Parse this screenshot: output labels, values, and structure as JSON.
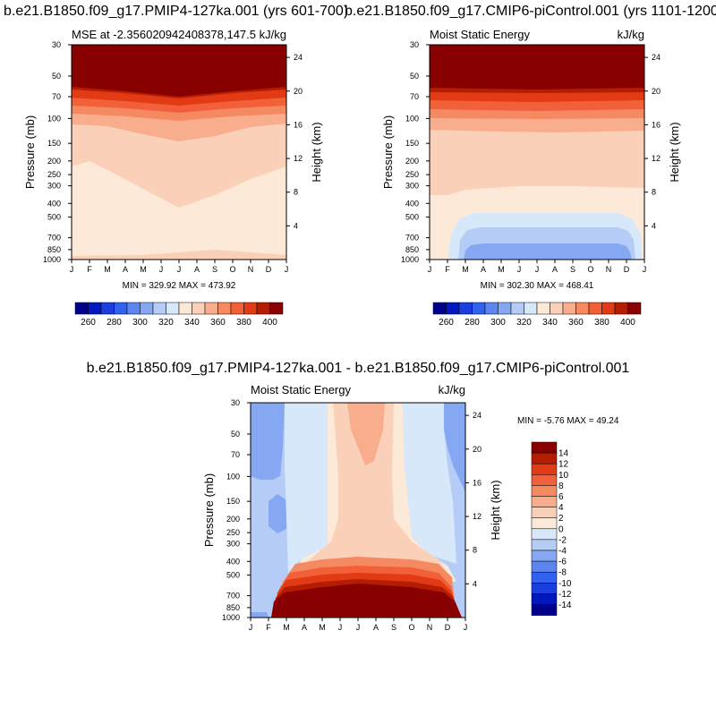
{
  "chart_data": [
    {
      "type": "heatmap",
      "title": "b.e21.B1850.f09_g17.PMIP4-127ka.001 (yrs 601-700)",
      "left_string": "MSE at -2.356020942408378,147.5",
      "right_string": "kJ/kg",
      "ylabel": "Pressure (mb)",
      "ylabel_right": "Height (km)",
      "x_ticks": [
        "J",
        "F",
        "M",
        "A",
        "M",
        "J",
        "J",
        "A",
        "S",
        "O",
        "N",
        "D",
        "J"
      ],
      "y_ticks": [
        "30",
        "50",
        "70",
        "100",
        "150",
        "200",
        "250",
        "300",
        "400",
        "500",
        "700",
        "850",
        "1000"
      ],
      "y_ticks_right": [
        "24",
        "20",
        "16",
        "12",
        "8",
        "4"
      ],
      "minmax_text": "MIN = 329.92 MAX = 473.92",
      "min": 329.92,
      "max": 473.92,
      "colorbar": {
        "labels": [
          "260",
          "280",
          "300",
          "320",
          "340",
          "360",
          "380",
          "400"
        ],
        "colors": [
          "#00008b",
          "#0018be",
          "#1a3ee0",
          "#3361ef",
          "#5c85f0",
          "#86a8f3",
          "#b5cdf6",
          "#d8e8fb",
          "#fde9d8",
          "#fbd0b8",
          "#f8ae8c",
          "#f58a62",
          "#f16038",
          "#e23a14",
          "#b51d03",
          "#880000"
        ]
      },
      "layers": [
        {
          "value": 330,
          "color": "#fde9d8"
        },
        {
          "value": 340,
          "color": "#fbd0b8"
        },
        {
          "value": 350,
          "color": "#f8ae8c"
        },
        {
          "value": 360,
          "color": "#f58a62"
        },
        {
          "value": 370,
          "color": "#f16038"
        },
        {
          "value": 380,
          "color": "#e23a14"
        },
        {
          "value": 390,
          "color": "#b51d03"
        },
        {
          "value": 400,
          "color": "#880000"
        }
      ]
    },
    {
      "type": "heatmap",
      "title": "b.e21.B1850.f09_g17.CMIP6-piControl.001 (yrs 1101-1200)",
      "left_string": "Moist Static Energy",
      "right_string": "kJ/kg",
      "ylabel": "Pressure (mb)",
      "ylabel_right": "Height (km)",
      "x_ticks": [
        "J",
        "F",
        "M",
        "A",
        "M",
        "J",
        "J",
        "A",
        "S",
        "O",
        "N",
        "D",
        "J"
      ],
      "y_ticks": [
        "30",
        "50",
        "70",
        "100",
        "150",
        "200",
        "250",
        "300",
        "400",
        "500",
        "700",
        "850",
        "1000"
      ],
      "y_ticks_right": [
        "24",
        "20",
        "16",
        "12",
        "8",
        "4"
      ],
      "minmax_text": "MIN = 302.30 MAX = 468.41",
      "min": 302.3,
      "max": 468.41,
      "colorbar": {
        "labels": [
          "260",
          "280",
          "300",
          "320",
          "340",
          "360",
          "380",
          "400"
        ],
        "colors": [
          "#00008b",
          "#0018be",
          "#1a3ee0",
          "#3361ef",
          "#5c85f0",
          "#86a8f3",
          "#b5cdf6",
          "#d8e8fb",
          "#fde9d8",
          "#fbd0b8",
          "#f8ae8c",
          "#f58a62",
          "#f16038",
          "#e23a14",
          "#b51d03",
          "#880000"
        ]
      }
    },
    {
      "type": "heatmap",
      "title": "b.e21.B1850.f09_g17.PMIP4-127ka.001 - b.e21.B1850.f09_g17.CMIP6-piControl.001",
      "left_string": "Moist Static Energy",
      "right_string": "kJ/kg",
      "ylabel": "Pressure (mb)",
      "ylabel_right": "Height (km)",
      "x_ticks": [
        "J",
        "F",
        "M",
        "A",
        "M",
        "J",
        "J",
        "A",
        "S",
        "O",
        "N",
        "D",
        "J"
      ],
      "y_ticks": [
        "30",
        "50",
        "70",
        "100",
        "150",
        "200",
        "250",
        "300",
        "400",
        "500",
        "700",
        "850",
        "1000"
      ],
      "y_ticks_right": [
        "24",
        "20",
        "16",
        "12",
        "8",
        "4"
      ],
      "minmax_text": "MIN =  -5.76 MAX =  49.24",
      "min": -5.76,
      "max": 49.24,
      "colorbar": {
        "labels": [
          "14",
          "12",
          "10",
          "8",
          "6",
          "4",
          "2",
          "0",
          "-2",
          "-4",
          "-6",
          "-8",
          "-10",
          "-12",
          "-14"
        ],
        "colors": [
          "#880000",
          "#b51d03",
          "#e23a14",
          "#f16038",
          "#f58a62",
          "#f8ae8c",
          "#fbd0b8",
          "#fde9d8",
          "#d8e8fb",
          "#b5cdf6",
          "#86a8f3",
          "#5c85f0",
          "#3361ef",
          "#1a3ee0",
          "#0018be",
          "#00008b"
        ]
      }
    }
  ]
}
